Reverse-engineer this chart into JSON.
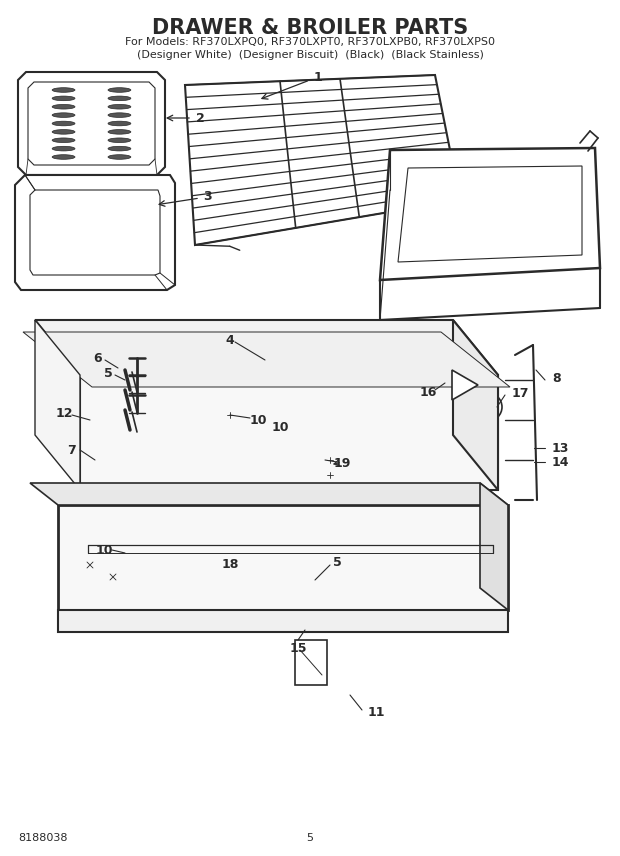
{
  "title": "DRAWER & BROILER PARTS",
  "subtitle1": "For Models: RF370LXPQ0, RF370LXPT0, RF370LXPB0, RF370LXPS0",
  "subtitle2": "(Designer White)  (Designer Biscuit)  (Black)  (Black Stainless)",
  "part_number": "8188038",
  "page_number": "5",
  "bg": "#ffffff",
  "lc": "#2a2a2a",
  "title_fs": 15,
  "sub_fs": 8,
  "lbl_fs": 9,
  "foot_fs": 8
}
